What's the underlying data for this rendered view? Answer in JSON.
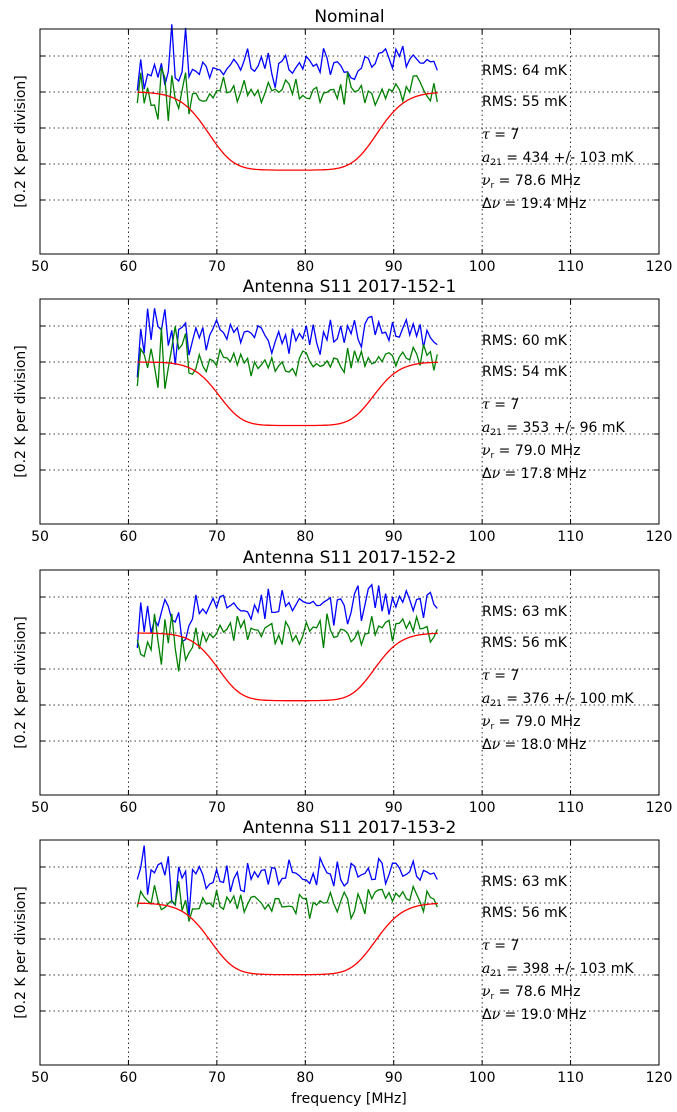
{
  "figure": {
    "ylabel": "[0.2 K per division]",
    "xlabel": "frequency [MHz]"
  },
  "chart_data": [
    {
      "type": "line",
      "title": "Nominal",
      "xlim": [
        50,
        120
      ],
      "xticks": [
        50,
        60,
        70,
        80,
        90,
        100,
        110,
        120
      ],
      "ylim": [
        -0.9,
        0.35
      ],
      "y_divisions": [
        0.2,
        0.0,
        -0.2,
        -0.4,
        -0.6
      ],
      "annotations": {
        "rms_blue": "RMS: 64 mK",
        "rms_green": "RMS: 55 mK",
        "tau": "7",
        "a21": "434 +/- 103 mK",
        "nu_r": "78.6 MHz",
        "dnu": "19.4 MHz"
      },
      "model": {
        "amp": 0.434,
        "nu_r": 78.6,
        "dnu": 19.4,
        "tau": 7
      },
      "residual_rms_blue": 0.064,
      "residual_rms_green": 0.055,
      "series": [
        {
          "color": "#0000ff",
          "offset": 0.15,
          "seed": 11
        },
        {
          "color": "#008000",
          "offset": 0.0,
          "seed": 23
        },
        {
          "color": "#ff0000",
          "offset": 0.0,
          "model": true
        }
      ]
    },
    {
      "type": "line",
      "title": "Antenna S11 2017-152-1",
      "xlim": [
        50,
        120
      ],
      "xticks": [
        50,
        60,
        70,
        80,
        90,
        100,
        110,
        120
      ],
      "ylim": [
        -0.9,
        0.35
      ],
      "y_divisions": [
        0.2,
        0.0,
        -0.2,
        -0.4,
        -0.6
      ],
      "annotations": {
        "rms_blue": "RMS: 60 mK",
        "rms_green": "RMS: 54 mK",
        "tau": "7",
        "a21": "353 +/- 96 mK",
        "nu_r": "79.0 MHz",
        "dnu": "17.8 MHz"
      },
      "model": {
        "amp": 0.353,
        "nu_r": 79.0,
        "dnu": 17.8,
        "tau": 7
      },
      "residual_rms_blue": 0.06,
      "residual_rms_green": 0.054,
      "series": [
        {
          "color": "#0000ff",
          "offset": 0.15,
          "seed": 31
        },
        {
          "color": "#008000",
          "offset": 0.0,
          "seed": 47
        },
        {
          "color": "#ff0000",
          "offset": 0.0,
          "model": true
        }
      ]
    },
    {
      "type": "line",
      "title": "Antenna S11 2017-152-2",
      "xlim": [
        50,
        120
      ],
      "xticks": [
        50,
        60,
        70,
        80,
        90,
        100,
        110,
        120
      ],
      "ylim": [
        -0.9,
        0.35
      ],
      "y_divisions": [
        0.2,
        0.0,
        -0.2,
        -0.4,
        -0.6
      ],
      "annotations": {
        "rms_blue": "RMS: 63 mK",
        "rms_green": "RMS: 56 mK",
        "tau": "7",
        "a21": "376 +/- 100 mK",
        "nu_r": "79.0 MHz",
        "dnu": "18.0 MHz"
      },
      "model": {
        "amp": 0.376,
        "nu_r": 79.0,
        "dnu": 18.0,
        "tau": 7
      },
      "residual_rms_blue": 0.063,
      "residual_rms_green": 0.056,
      "series": [
        {
          "color": "#0000ff",
          "offset": 0.15,
          "seed": 53
        },
        {
          "color": "#008000",
          "offset": 0.0,
          "seed": 67
        },
        {
          "color": "#ff0000",
          "offset": 0.0,
          "model": true
        }
      ]
    },
    {
      "type": "line",
      "title": "Antenna S11 2017-153-2",
      "xlim": [
        50,
        120
      ],
      "xticks": [
        50,
        60,
        70,
        80,
        90,
        100,
        110,
        120
      ],
      "ylim": [
        -0.9,
        0.35
      ],
      "y_divisions": [
        0.2,
        0.0,
        -0.2,
        -0.4,
        -0.6
      ],
      "annotations": {
        "rms_blue": "RMS: 63 mK",
        "rms_green": "RMS: 56 mK",
        "tau": "7",
        "a21": "398 +/- 103 mK",
        "nu_r": "78.6 MHz",
        "dnu": "19.0 MHz"
      },
      "model": {
        "amp": 0.398,
        "nu_r": 78.6,
        "dnu": 19.0,
        "tau": 7
      },
      "residual_rms_blue": 0.063,
      "residual_rms_green": 0.056,
      "series": [
        {
          "color": "#0000ff",
          "offset": 0.15,
          "seed": 71
        },
        {
          "color": "#008000",
          "offset": 0.0,
          "seed": 89
        },
        {
          "color": "#ff0000",
          "offset": 0.0,
          "model": true
        }
      ]
    }
  ]
}
